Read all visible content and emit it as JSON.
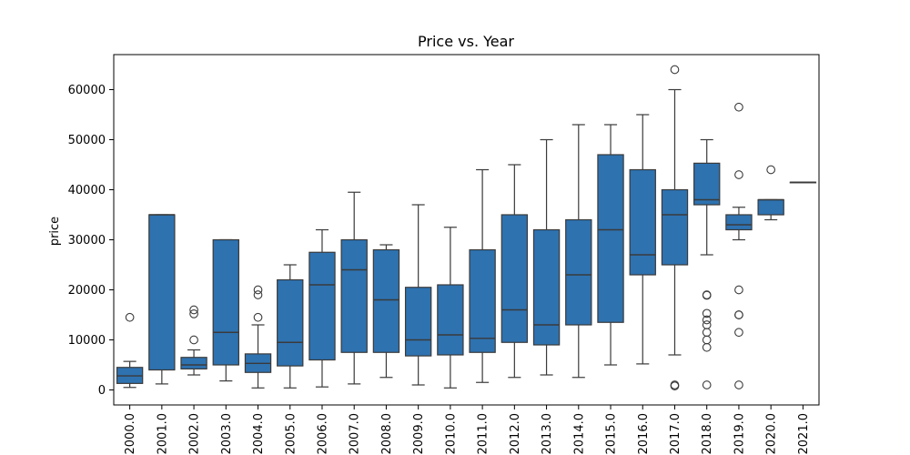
{
  "chart_data": {
    "type": "box",
    "title": "Price vs. Year",
    "xlabel": "",
    "ylabel": "price",
    "ylim": [
      -3000,
      67000
    ],
    "yticks": [
      0,
      10000,
      20000,
      30000,
      40000,
      50000,
      60000
    ],
    "ytick_labels": [
      "0",
      "10000",
      "20000",
      "30000",
      "40000",
      "50000",
      "60000"
    ],
    "grid": false,
    "colors": {
      "box_fill": "#2e72b0",
      "line": "#3a3a3a"
    },
    "categories": [
      "2000.0",
      "2001.0",
      "2002.0",
      "2003.0",
      "2004.0",
      "2005.0",
      "2006.0",
      "2007.0",
      "2008.0",
      "2009.0",
      "2010.0",
      "2011.0",
      "2012.0",
      "2013.0",
      "2014.0",
      "2015.0",
      "2016.0",
      "2017.0",
      "2018.0",
      "2019.0",
      "2020.0",
      "2021.0"
    ],
    "boxes": [
      {
        "whislo": 500,
        "q1": 1300,
        "med": 2800,
        "q3": 4500,
        "whishi": 5700,
        "fliers": [
          14500
        ]
      },
      {
        "whislo": 1200,
        "q1": 4000,
        "med": 35000,
        "q3": 35000,
        "whishi": 35000,
        "fliers": []
      },
      {
        "whislo": 3000,
        "q1": 4200,
        "med": 5000,
        "q3": 6500,
        "whishi": 8000,
        "fliers": [
          10000,
          15200,
          16000
        ]
      },
      {
        "whislo": 1800,
        "q1": 5000,
        "med": 11500,
        "q3": 30000,
        "whishi": 30000,
        "fliers": []
      },
      {
        "whislo": 400,
        "q1": 3500,
        "med": 5300,
        "q3": 7200,
        "whishi": 13000,
        "fliers": [
          14500,
          19000,
          20000
        ]
      },
      {
        "whislo": 400,
        "q1": 4800,
        "med": 9500,
        "q3": 22000,
        "whishi": 25000,
        "fliers": []
      },
      {
        "whislo": 600,
        "q1": 6000,
        "med": 21000,
        "q3": 27500,
        "whishi": 32000,
        "fliers": []
      },
      {
        "whislo": 1200,
        "q1": 7500,
        "med": 24000,
        "q3": 30000,
        "whishi": 39500,
        "fliers": []
      },
      {
        "whislo": 2500,
        "q1": 7500,
        "med": 18000,
        "q3": 28000,
        "whishi": 29000,
        "fliers": []
      },
      {
        "whislo": 1000,
        "q1": 6800,
        "med": 10000,
        "q3": 20500,
        "whishi": 37000,
        "fliers": []
      },
      {
        "whislo": 400,
        "q1": 7000,
        "med": 11000,
        "q3": 21000,
        "whishi": 32500,
        "fliers": []
      },
      {
        "whislo": 1500,
        "q1": 7500,
        "med": 10300,
        "q3": 28000,
        "whishi": 44000,
        "fliers": []
      },
      {
        "whislo": 2500,
        "q1": 9500,
        "med": 16000,
        "q3": 35000,
        "whishi": 45000,
        "fliers": []
      },
      {
        "whislo": 3000,
        "q1": 9000,
        "med": 13000,
        "q3": 32000,
        "whishi": 50000,
        "fliers": []
      },
      {
        "whislo": 2500,
        "q1": 13000,
        "med": 23000,
        "q3": 34000,
        "whishi": 53000,
        "fliers": []
      },
      {
        "whislo": 5000,
        "q1": 13500,
        "med": 32000,
        "q3": 47000,
        "whishi": 53000,
        "fliers": []
      },
      {
        "whislo": 5200,
        "q1": 23000,
        "med": 27000,
        "q3": 44000,
        "whishi": 55000,
        "fliers": []
      },
      {
        "whislo": 7000,
        "q1": 25000,
        "med": 35000,
        "q3": 40000,
        "whishi": 60000,
        "fliers": [
          800,
          1000,
          64000
        ]
      },
      {
        "whislo": 27000,
        "q1": 37000,
        "med": 38000,
        "q3": 45300,
        "whishi": 50000,
        "fliers": [
          1000,
          8500,
          10000,
          11500,
          13000,
          14000,
          15300,
          18900,
          19000
        ]
      },
      {
        "whislo": 30000,
        "q1": 32000,
        "med": 33000,
        "q3": 35000,
        "whishi": 36500,
        "fliers": [
          1000,
          11500,
          15000,
          15000,
          20000,
          43000,
          56500
        ]
      },
      {
        "whislo": 34000,
        "q1": 35000,
        "med": 38000,
        "q3": 38000,
        "whishi": 38000,
        "fliers": [
          44000
        ]
      },
      {
        "whislo": 41500,
        "q1": 41500,
        "med": 41500,
        "q3": 41500,
        "whishi": 41500,
        "fliers": []
      }
    ]
  }
}
